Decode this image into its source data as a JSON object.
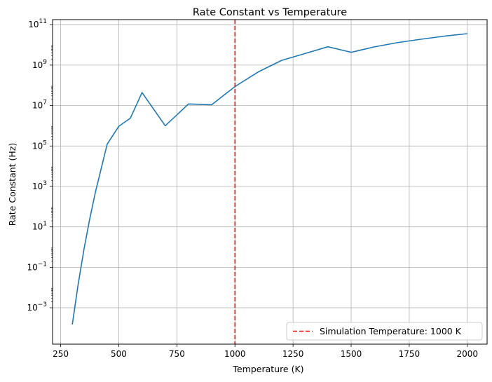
{
  "chart_data": {
    "type": "line",
    "title": "Rate Constant vs Temperature",
    "xlabel": "Temperature (K)",
    "ylabel": "Rate Constant (Hz)",
    "xlim": [
      215,
      2085
    ],
    "ylim": [
      -4.8,
      11.25
    ],
    "yscale": "log",
    "grid": true,
    "legend_position": "lower right",
    "x_ticks": [
      250,
      500,
      750,
      1000,
      1250,
      1500,
      1750,
      2000
    ],
    "y_ticks": [
      {
        "base": "10",
        "exp": "−3",
        "log": -3
      },
      {
        "base": "10",
        "exp": "−1",
        "log": -1
      },
      {
        "base": "10",
        "exp": "1",
        "log": 1
      },
      {
        "base": "10",
        "exp": "3",
        "log": 3
      },
      {
        "base": "10",
        "exp": "5",
        "log": 5
      },
      {
        "base": "10",
        "exp": "7",
        "log": 7
      },
      {
        "base": "10",
        "exp": "9",
        "log": 9
      },
      {
        "base": "10",
        "exp": "11",
        "log": 11
      }
    ],
    "series": [
      {
        "color": "#1f77b4",
        "x": [
          300,
          325,
          350,
          375,
          400,
          450,
          500,
          550,
          600,
          700,
          800,
          900,
          1000,
          1100,
          1200,
          1300,
          1400,
          1500,
          1600,
          1700,
          1800,
          1900,
          2000
        ],
        "y": [
          0.00015,
          0.014,
          0.76,
          25.0,
          560.0,
          123000.0,
          940000.0,
          2400000.0,
          44000000.0,
          1000000.0,
          12000000.0,
          11000000.0,
          87000000.0,
          460000000.0,
          1700000000.0,
          3700000000.0,
          8100000000.0,
          4300000000.0,
          8000000000.0,
          13000000000.0,
          19000000000.0,
          27000000000.0,
          36000000000.0
        ]
      }
    ],
    "reference_line": {
      "x": 1000,
      "color": "#ff0000",
      "style": "dashed",
      "label": "Simulation Temperature: 1000 K"
    }
  }
}
